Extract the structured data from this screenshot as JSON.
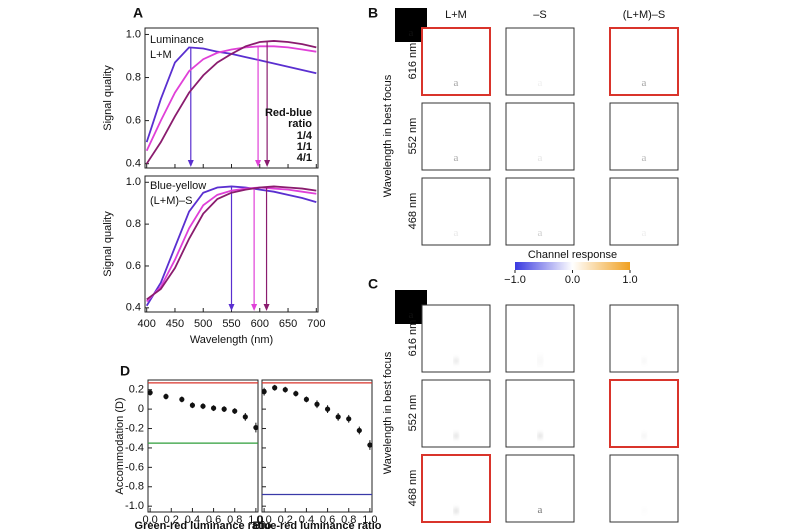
{
  "chart_data": [
    {
      "type": "line",
      "panel": "A",
      "ylabel": "Signal quality",
      "annotations": [
        "Luminance",
        "L+M"
      ],
      "legend_title": [
        "Red-blue",
        "ratio"
      ],
      "x": [
        400,
        425,
        450,
        475,
        500,
        525,
        550,
        575,
        600,
        625,
        650,
        675,
        700
      ],
      "series": [
        {
          "name": "1/4",
          "color": "#5a2fd0",
          "peak": 478,
          "values": [
            0.5,
            0.7,
            0.87,
            0.94,
            0.935,
            0.92,
            0.91,
            0.895,
            0.88,
            0.865,
            0.85,
            0.835,
            0.82
          ]
        },
        {
          "name": "1/1",
          "color": "#e040d8",
          "peak": 597,
          "values": [
            0.46,
            0.6,
            0.73,
            0.83,
            0.885,
            0.915,
            0.93,
            0.94,
            0.945,
            0.945,
            0.94,
            0.93,
            0.92
          ]
        },
        {
          "name": "4/1",
          "color": "#8a1c6e",
          "peak": 613,
          "values": [
            0.4,
            0.5,
            0.62,
            0.73,
            0.81,
            0.87,
            0.91,
            0.945,
            0.965,
            0.97,
            0.965,
            0.955,
            0.94
          ]
        }
      ],
      "xlim": [
        397,
        703
      ],
      "xticks": [
        400,
        450,
        500,
        550,
        600,
        650,
        700
      ],
      "xtick_labels": false,
      "ylim": [
        0.38,
        1.03
      ],
      "yticks": [
        0.4,
        0.6,
        0.8,
        {
          "value": 1,
          "label": "1.0"
        }
      ]
    },
    {
      "type": "line",
      "xlabel": "Wavelength (nm)",
      "ylabel": "Signal quality",
      "annotations": [
        "Blue-yellow",
        "(L+M)–S"
      ],
      "x": [
        400,
        425,
        450,
        475,
        500,
        525,
        550,
        575,
        600,
        625,
        650,
        675,
        700
      ],
      "series": [
        {
          "name": "1/4",
          "color": "#5a2fd0",
          "peak": 550,
          "values": [
            0.41,
            0.52,
            0.69,
            0.86,
            0.95,
            0.975,
            0.98,
            0.975,
            0.965,
            0.955,
            0.94,
            0.925,
            0.905
          ]
        },
        {
          "name": "1/1",
          "color": "#e040d8",
          "peak": 590,
          "values": [
            0.43,
            0.5,
            0.63,
            0.78,
            0.89,
            0.94,
            0.96,
            0.97,
            0.975,
            0.97,
            0.965,
            0.955,
            0.945
          ]
        },
        {
          "name": "4/1",
          "color": "#8a1c6e",
          "peak": 612,
          "values": [
            0.44,
            0.49,
            0.59,
            0.73,
            0.85,
            0.92,
            0.95,
            0.965,
            0.975,
            0.98,
            0.975,
            0.97,
            0.96
          ]
        }
      ],
      "xlim": [
        397,
        703
      ],
      "xticks": [
        400,
        450,
        500,
        550,
        600,
        650,
        700
      ],
      "ylim": [
        0.38,
        1.03
      ],
      "yticks": [
        0.4,
        0.6,
        0.8,
        {
          "value": 1,
          "label": "1.0"
        }
      ]
    },
    {
      "type": "scatter",
      "panel": "D",
      "ylabel": "Accommodation (D)",
      "xlabel": "Green-red luminance ratio",
      "x": [
        0,
        0.15,
        0.3,
        0.4,
        0.5,
        0.6,
        0.7,
        0.8,
        0.9,
        1.0
      ],
      "values": [
        0.17,
        0.13,
        0.1,
        0.04,
        0.03,
        0.01,
        0.0,
        -0.02,
        -0.08,
        -0.19
      ],
      "errors": [
        0.03,
        0.03,
        0.03,
        0.03,
        0.03,
        0.03,
        0.03,
        0.03,
        0.04,
        0.05
      ],
      "hlines": [
        {
          "value": 0.27,
          "color": "#d9342b"
        },
        {
          "value": -0.35,
          "color": "#2e9e3a"
        }
      ],
      "xlim": [
        -0.02,
        1.02
      ],
      "xticks": [
        {
          "value": 0,
          "label": "0.0"
        },
        0.2,
        0.4,
        0.6,
        0.8,
        {
          "value": 1,
          "label": "1.0"
        }
      ],
      "ylim": [
        -1.06,
        0.3
      ],
      "yticks": [
        0.2,
        0,
        -0.2,
        -0.4,
        -0.6,
        -0.8,
        {
          "value": -1,
          "label": "-1.0"
        }
      ]
    },
    {
      "type": "scatter",
      "xlabel": "Blue-red luminance ratio",
      "x": [
        0,
        0.1,
        0.2,
        0.3,
        0.4,
        0.5,
        0.6,
        0.7,
        0.8,
        0.9,
        1.0
      ],
      "values": [
        0.18,
        0.22,
        0.2,
        0.16,
        0.1,
        0.05,
        0.0,
        -0.08,
        -0.1,
        -0.22,
        -0.37
      ],
      "errors": [
        0.04,
        0.03,
        0.03,
        0.03,
        0.03,
        0.04,
        0.04,
        0.04,
        0.04,
        0.04,
        0.05
      ],
      "hlines": [
        {
          "value": 0.27,
          "color": "#d9342b"
        },
        {
          "value": -0.88,
          "color": "#3a3aa8"
        }
      ],
      "xlim": [
        -0.02,
        1.02
      ],
      "xticks": [
        {
          "value": 0,
          "label": "0.0"
        },
        0.2,
        0.4,
        0.6,
        0.8,
        {
          "value": 1,
          "label": "1.0"
        }
      ],
      "ylim": [
        -1.06,
        0.3
      ],
      "yticks": [
        0.2,
        0,
        -0.2,
        -0.4,
        -0.6,
        -0.8,
        -1
      ],
      "ytick_labels": false
    }
  ],
  "image_panels": [
    {
      "panel": "B",
      "icon_letter": "a",
      "icon_color": "#7a2ab0",
      "ylabel": "Wavelength in best focus",
      "columns": [
        "L+M",
        "–S",
        "(L+M)–S"
      ],
      "rows": [
        "616 nm",
        "552 nm",
        "468 nm"
      ],
      "highlight": [
        [
          0,
          0
        ],
        [
          0,
          2
        ]
      ],
      "colorbar": {
        "title": "Channel response",
        "lim": [
          -1,
          1
        ],
        "ticks": [
          {
            "value": -1,
            "label": "−1.0"
          },
          {
            "value": 0,
            "label": "0.0"
          },
          {
            "value": 1,
            "label": "1.0"
          }
        ]
      }
    },
    {
      "panel": "C",
      "icon_letter": "a",
      "icon_color": "#4a3ae0",
      "ylabel": "Wavelength in best focus",
      "rows": [
        "616 nm",
        "552 nm",
        "468 nm"
      ],
      "highlight": [
        [
          1,
          2
        ],
        [
          2,
          0
        ]
      ]
    }
  ]
}
